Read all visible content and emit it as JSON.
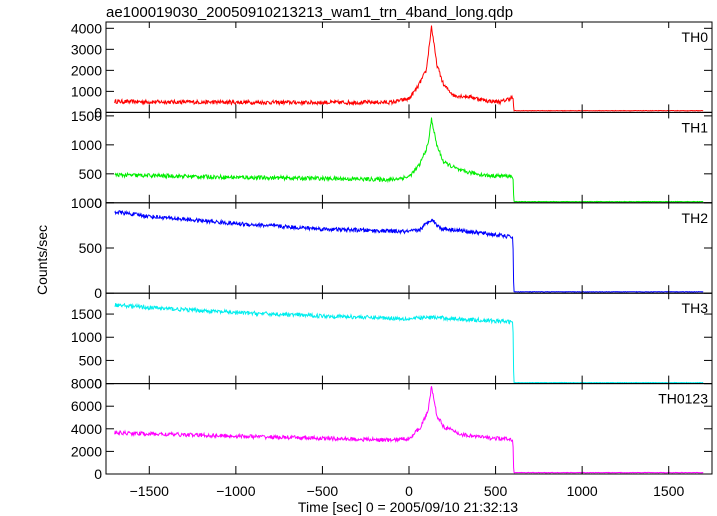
{
  "chart_data": {
    "type": "line",
    "title": "ae100019030_20050910213213_wam1_trn_4band_long.qdp",
    "xlabel": "Time [sec] 0 = 2005/09/10 21:32:13",
    "ylabel": "Counts/sec",
    "xlim": [
      -1750,
      1750
    ],
    "x_ticks": [
      -1500,
      -1000,
      -500,
      0,
      500,
      1000,
      1500
    ],
    "x_tick_labels": [
      "−1500",
      "−1000",
      "−500",
      "0",
      "500",
      "1000",
      "1500"
    ],
    "grid": false,
    "panels": [
      {
        "name": "TH0",
        "color": "#ff0000",
        "ylim": [
          0,
          4300
        ],
        "y_ticks": [
          0,
          1000,
          2000,
          3000,
          4000
        ],
        "y_tick_labels": [
          "0",
          "1000",
          "2000",
          "3000",
          "4000"
        ],
        "series": [
          {
            "x": -1700,
            "y": 520
          },
          {
            "x": -1500,
            "y": 500
          },
          {
            "x": -1000,
            "y": 480
          },
          {
            "x": -500,
            "y": 470
          },
          {
            "x": -100,
            "y": 480
          },
          {
            "x": 0,
            "y": 650
          },
          {
            "x": 50,
            "y": 1200
          },
          {
            "x": 100,
            "y": 2000
          },
          {
            "x": 130,
            "y": 4100
          },
          {
            "x": 160,
            "y": 2300
          },
          {
            "x": 200,
            "y": 1300
          },
          {
            "x": 260,
            "y": 800
          },
          {
            "x": 350,
            "y": 750
          },
          {
            "x": 450,
            "y": 550
          },
          {
            "x": 530,
            "y": 500
          },
          {
            "x": 600,
            "y": 720
          },
          {
            "x": 605,
            "y": 80
          },
          {
            "x": 1700,
            "y": 80
          }
        ]
      },
      {
        "name": "TH1",
        "color": "#00ee00",
        "ylim": [
          0,
          1560
        ],
        "y_ticks": [
          0,
          500,
          1000,
          1500
        ],
        "y_tick_labels": [
          "0",
          "500",
          "1000",
          "1500"
        ],
        "series": [
          {
            "x": -1700,
            "y": 480
          },
          {
            "x": -1500,
            "y": 470
          },
          {
            "x": -1000,
            "y": 440
          },
          {
            "x": -500,
            "y": 420
          },
          {
            "x": -100,
            "y": 400
          },
          {
            "x": 0,
            "y": 450
          },
          {
            "x": 60,
            "y": 650
          },
          {
            "x": 110,
            "y": 1000
          },
          {
            "x": 130,
            "y": 1450
          },
          {
            "x": 160,
            "y": 1000
          },
          {
            "x": 200,
            "y": 700
          },
          {
            "x": 300,
            "y": 550
          },
          {
            "x": 450,
            "y": 470
          },
          {
            "x": 600,
            "y": 460
          },
          {
            "x": 605,
            "y": 20
          },
          {
            "x": 1700,
            "y": 20
          }
        ]
      },
      {
        "name": "TH2",
        "color": "#0000ff",
        "ylim": [
          0,
          1000
        ],
        "y_ticks": [
          0,
          500,
          1000
        ],
        "y_tick_labels": [
          "0",
          "500",
          "1000"
        ],
        "series": [
          {
            "x": -1700,
            "y": 900
          },
          {
            "x": -1500,
            "y": 850
          },
          {
            "x": -1000,
            "y": 770
          },
          {
            "x": -500,
            "y": 710
          },
          {
            "x": 0,
            "y": 680
          },
          {
            "x": 60,
            "y": 700
          },
          {
            "x": 130,
            "y": 820
          },
          {
            "x": 180,
            "y": 720
          },
          {
            "x": 400,
            "y": 670
          },
          {
            "x": 600,
            "y": 620
          },
          {
            "x": 605,
            "y": 15
          },
          {
            "x": 1700,
            "y": 15
          }
        ]
      },
      {
        "name": "TH3",
        "color": "#00eeee",
        "ylim": [
          0,
          1950
        ],
        "y_ticks": [
          0,
          500,
          1000,
          1500
        ],
        "y_tick_labels": [
          "0",
          "500",
          "1000",
          "1500"
        ],
        "series": [
          {
            "x": -1700,
            "y": 1700
          },
          {
            "x": -1500,
            "y": 1640
          },
          {
            "x": -1000,
            "y": 1530
          },
          {
            "x": -500,
            "y": 1460
          },
          {
            "x": 0,
            "y": 1400
          },
          {
            "x": 130,
            "y": 1430
          },
          {
            "x": 300,
            "y": 1390
          },
          {
            "x": 600,
            "y": 1330
          },
          {
            "x": 605,
            "y": 20
          },
          {
            "x": 1700,
            "y": 20
          }
        ]
      },
      {
        "name": "TH0123",
        "color": "#ff00ff",
        "ylim": [
          0,
          8000
        ],
        "y_ticks": [
          0,
          2000,
          4000,
          6000,
          8000
        ],
        "y_tick_labels": [
          "0",
          "2000",
          "4000",
          "6000",
          "8000"
        ],
        "series": [
          {
            "x": -1700,
            "y": 3650
          },
          {
            "x": -1500,
            "y": 3550
          },
          {
            "x": -1000,
            "y": 3350
          },
          {
            "x": -500,
            "y": 3150
          },
          {
            "x": -100,
            "y": 3000
          },
          {
            "x": 0,
            "y": 3150
          },
          {
            "x": 60,
            "y": 4000
          },
          {
            "x": 110,
            "y": 5500
          },
          {
            "x": 130,
            "y": 7800
          },
          {
            "x": 160,
            "y": 5200
          },
          {
            "x": 200,
            "y": 4200
          },
          {
            "x": 300,
            "y": 3500
          },
          {
            "x": 450,
            "y": 3200
          },
          {
            "x": 600,
            "y": 3050
          },
          {
            "x": 605,
            "y": 120
          },
          {
            "x": 1700,
            "y": 120
          }
        ]
      }
    ]
  }
}
